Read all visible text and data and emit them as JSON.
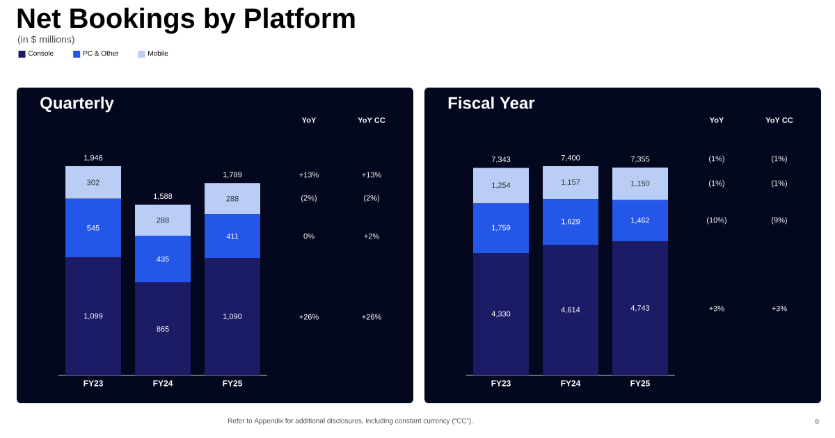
{
  "chart_data": [
    {
      "type": "other",
      "title": "Net Bookings by Platform",
      "subtitle": "(in $ millions)",
      "annotations": [
        "Refer to Appendix for additional disclosures, including constant currency (“CC”).",
        "8"
      ]
    },
    {
      "type": "bar",
      "title": "Quarterly",
      "stacked": true,
      "legend": "top left",
      "tick_labels": "x",
      "categories": [
        "FY23",
        "FY24",
        "FY25"
      ],
      "series": [
        {
          "name": "Console",
          "color": "#1c1c66",
          "values": [
            1099,
            865,
            1090
          ],
          "value_labels": [
            "1,099",
            "865",
            "1,090"
          ]
        },
        {
          "name": "PC & Other",
          "color": "#2457e8",
          "values": [
            545,
            435,
            411
          ],
          "value_labels": [
            "545",
            "435",
            "411"
          ]
        },
        {
          "name": "Mobile",
          "color": "#b9cdf5",
          "values": [
            302,
            288,
            288
          ],
          "value_labels": [
            "302",
            "288",
            "288"
          ]
        }
      ],
      "totals": [
        "1,946",
        "1,588",
        "1,789"
      ],
      "annotations": [
        "YoY",
        "YoY CC",
        "+13%",
        "+13%",
        "(2%)",
        "(2%)",
        "0%",
        "+2%",
        "+26%",
        "+26%"
      ]
    },
    {
      "type": "bar",
      "title": "Fiscal Year",
      "stacked": true,
      "tick_labels": "x",
      "categories": [
        "FY23",
        "FY24",
        "FY25"
      ],
      "series": [
        {
          "color": "#1c1c66",
          "values": [
            4330,
            4614,
            4743
          ],
          "value_labels": [
            "4,330",
            "4,614",
            "4,743"
          ]
        },
        {
          "color": "#2457e8",
          "values": [
            1759,
            1629,
            1462
          ],
          "value_labels": [
            "1,759",
            "1,629",
            "1,462"
          ]
        },
        {
          "color": "#b9cdf5",
          "values": [
            1254,
            1157,
            1150
          ],
          "value_labels": [
            "1,254",
            "1,157",
            "1,150"
          ]
        }
      ],
      "totals": [
        "7,343",
        "7,400",
        "7,355"
      ],
      "annotations": [
        "YoY",
        "YoY CC",
        "(1%)",
        "(1%)",
        "(1%)",
        "(1%)",
        "(10%)",
        "(9%)",
        "+3%",
        "+3%"
      ]
    }
  ]
}
